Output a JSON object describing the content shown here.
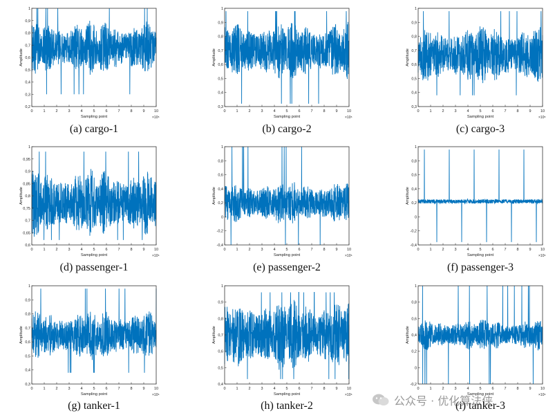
{
  "colors": {
    "signal": "#0072BD",
    "axis": "#333333"
  },
  "watermark": {
    "text": "公众号 · 优化算法侠",
    "icon": "wechat-icon"
  },
  "chart_data": [
    {
      "type": "line",
      "id": "a",
      "caption": "(a) cargo-1",
      "xlabel": "Sampling point",
      "ylabel": "Amplitude",
      "x_exponent": "×10⁵",
      "xlim": [
        0,
        10
      ],
      "xticks": [
        "0",
        "1",
        "2",
        "3",
        "4",
        "5",
        "6",
        "7",
        "8",
        "9",
        "10"
      ],
      "ylim": [
        0.2,
        1
      ],
      "yticks": [
        "0,2",
        "0,3",
        "0,4",
        "0,5",
        "0,6",
        "0,7",
        "0,8",
        "0,9",
        "1"
      ],
      "signal": {
        "center": 0.68,
        "amp": 0.16,
        "spike_max": 1.0,
        "spike_min": 0.3,
        "seed": 1
      }
    },
    {
      "type": "line",
      "id": "b",
      "caption": "(b) cargo-2",
      "xlabel": "Sampling point",
      "ylabel": "Amplitude",
      "x_exponent": "×10⁵",
      "xlim": [
        0,
        10
      ],
      "xticks": [
        "0",
        "1",
        "2",
        "3",
        "4",
        "5",
        "6",
        "7",
        "8",
        "9",
        "10"
      ],
      "ylim": [
        0.3,
        1
      ],
      "yticks": [
        "0,3",
        "0,4",
        "0,5",
        "0,6",
        "0,7",
        "0,8",
        "0,9",
        "1"
      ],
      "signal": {
        "center": 0.7,
        "amp": 0.15,
        "spike_max": 0.98,
        "spike_min": 0.32,
        "seed": 2
      }
    },
    {
      "type": "line",
      "id": "c",
      "caption": "(c) cargo-3",
      "xlabel": "Sampling point",
      "ylabel": "Amplitude",
      "x_exponent": "×10⁵",
      "xlim": [
        0,
        10
      ],
      "xticks": [
        "0",
        "1",
        "2",
        "3",
        "4",
        "5",
        "6",
        "7",
        "8",
        "9",
        "10"
      ],
      "ylim": [
        0.3,
        1
      ],
      "yticks": [
        "0,3",
        "0,4",
        "0,5",
        "0,6",
        "0,7",
        "0,8",
        "0,9",
        "1"
      ],
      "signal": {
        "center": 0.67,
        "amp": 0.15,
        "spike_max": 0.98,
        "spike_min": 0.38,
        "seed": 3
      }
    },
    {
      "type": "line",
      "id": "d",
      "caption": "(d) passenger-1",
      "xlabel": "Sampling point",
      "ylabel": "Amplitude",
      "x_exponent": "×10⁵",
      "xlim": [
        0,
        10
      ],
      "xticks": [
        "0",
        "1",
        "2",
        "3",
        "4",
        "5",
        "6",
        "7",
        "8",
        "9",
        "10"
      ],
      "ylim": [
        0.6,
        1
      ],
      "yticks": [
        "0,6",
        "0,65",
        "0,7",
        "0,75",
        "0,8",
        "0,85",
        "0,9",
        "0,95",
        "1"
      ],
      "signal": {
        "center": 0.77,
        "amp": 0.1,
        "spike_max": 0.98,
        "spike_min": 0.62,
        "seed": 4
      }
    },
    {
      "type": "line",
      "id": "e",
      "caption": "(e) passenger-2",
      "xlabel": "Sampling point",
      "ylabel": "Amplitude",
      "x_exponent": "×10⁵",
      "xlim": [
        0,
        10
      ],
      "xticks": [
        "0",
        "1",
        "2",
        "3",
        "4",
        "5",
        "6",
        "7",
        "8",
        "9",
        "10"
      ],
      "ylim": [
        -0.4,
        1
      ],
      "yticks": [
        "-0,4",
        "-0,2",
        "0",
        "0,2",
        "0,4",
        "0,6",
        "0,8",
        "1"
      ],
      "signal": {
        "center": 0.2,
        "amp": 0.22,
        "spike_max": 1.0,
        "spike_min": -0.4,
        "seed": 5
      }
    },
    {
      "type": "line",
      "id": "f",
      "caption": "(f) passenger-3",
      "xlabel": "Sampling point",
      "ylabel": "Amplitude",
      "x_exponent": "×10⁵",
      "xlim": [
        0,
        10
      ],
      "xticks": [
        "0",
        "1",
        "2",
        "3",
        "4",
        "5",
        "6",
        "7",
        "8",
        "9",
        "10"
      ],
      "ylim": [
        -0.4,
        1
      ],
      "yticks": [
        "-0,4",
        "-0,2",
        "0",
        "0,2",
        "0,4",
        "0,6",
        "0,8",
        "1"
      ],
      "signal": {
        "center": 0.22,
        "amp": 0.03,
        "spike_max": 0.96,
        "spike_min": -0.36,
        "seed": 6
      }
    },
    {
      "type": "line",
      "id": "g",
      "caption": "(g) tanker-1",
      "xlabel": "Sampling point",
      "ylabel": "Amplitude",
      "x_exponent": "×10⁵",
      "xlim": [
        0,
        10
      ],
      "xticks": [
        "0",
        "1",
        "2",
        "3",
        "4",
        "5",
        "6",
        "7",
        "8",
        "9",
        "10"
      ],
      "ylim": [
        0.3,
        1
      ],
      "yticks": [
        "0,3",
        "0,4",
        "0,5",
        "0,6",
        "0,7",
        "0,8",
        "0,9",
        "1"
      ],
      "signal": {
        "center": 0.65,
        "amp": 0.13,
        "spike_max": 0.98,
        "spike_min": 0.38,
        "seed": 7
      }
    },
    {
      "type": "line",
      "id": "h",
      "caption": "(h) tanker-2",
      "xlabel": "Sampling point",
      "ylabel": "Amplitude",
      "x_exponent": "×10⁵",
      "xlim": [
        0,
        10
      ],
      "xticks": [
        "0",
        "1",
        "2",
        "3",
        "4",
        "5",
        "6",
        "7",
        "8",
        "9",
        "10"
      ],
      "ylim": [
        0.4,
        1
      ],
      "yticks": [
        "0,4",
        "0,5",
        "0,6",
        "0,7",
        "0,8",
        "0,9",
        "1"
      ],
      "signal": {
        "center": 0.7,
        "amp": 0.16,
        "spike_max": 0.96,
        "spike_min": 0.43,
        "seed": 8
      }
    },
    {
      "type": "line",
      "id": "i",
      "caption": "(i) tanker-3",
      "xlabel": "Sampling point",
      "ylabel": "Amplitude",
      "x_exponent": "×10⁵",
      "xlim": [
        0,
        10
      ],
      "xticks": [
        "0",
        "1",
        "2",
        "3",
        "4",
        "5",
        "6",
        "7",
        "8",
        "9",
        "10"
      ],
      "ylim": [
        -0.2,
        1
      ],
      "yticks": [
        "-0,2",
        "0",
        "0,2",
        "0,4",
        "0,6",
        "0,8",
        "1"
      ],
      "signal": {
        "center": 0.4,
        "amp": 0.14,
        "spike_max": 1.0,
        "spike_min": -0.2,
        "seed": 9
      }
    }
  ]
}
